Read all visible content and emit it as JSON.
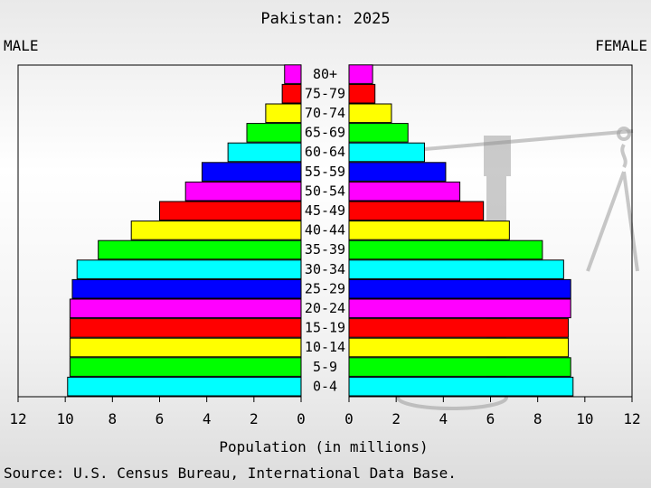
{
  "chart_data": {
    "type": "bar",
    "title": "Pakistan: 2025",
    "left_label": "MALE",
    "right_label": "FEMALE",
    "xlabel": "Population (in millions)",
    "source": "Source: U.S. Census Bureau, International Data Base.",
    "xlim": [
      0,
      12
    ],
    "x_ticks": [
      0,
      2,
      4,
      6,
      8,
      10,
      12
    ],
    "grid": false,
    "categories": [
      "0-4",
      "5-9",
      "10-14",
      "15-19",
      "20-24",
      "25-29",
      "30-34",
      "35-39",
      "40-44",
      "45-49",
      "50-54",
      "55-59",
      "60-64",
      "65-69",
      "70-74",
      "75-79",
      "80+"
    ],
    "series": [
      {
        "name": "MALE",
        "values": [
          9.9,
          9.8,
          9.8,
          9.8,
          9.8,
          9.7,
          9.5,
          8.6,
          7.2,
          6.0,
          4.9,
          4.2,
          3.1,
          2.3,
          1.5,
          0.8,
          0.7
        ]
      },
      {
        "name": "FEMALE",
        "values": [
          9.5,
          9.4,
          9.3,
          9.3,
          9.4,
          9.4,
          9.1,
          8.2,
          6.8,
          5.7,
          4.7,
          4.1,
          3.2,
          2.5,
          1.8,
          1.1,
          1.0
        ]
      }
    ],
    "bar_colors": [
      "#00ffff",
      "#00ff00",
      "#ffff00",
      "#ff0000",
      "#ff00ff",
      "#0000ff",
      "#00ffff",
      "#00ff00",
      "#ffff00",
      "#ff0000",
      "#ff00ff",
      "#0000ff",
      "#00ffff",
      "#00ff00",
      "#ffff00",
      "#ff0000",
      "#ff00ff"
    ]
  }
}
